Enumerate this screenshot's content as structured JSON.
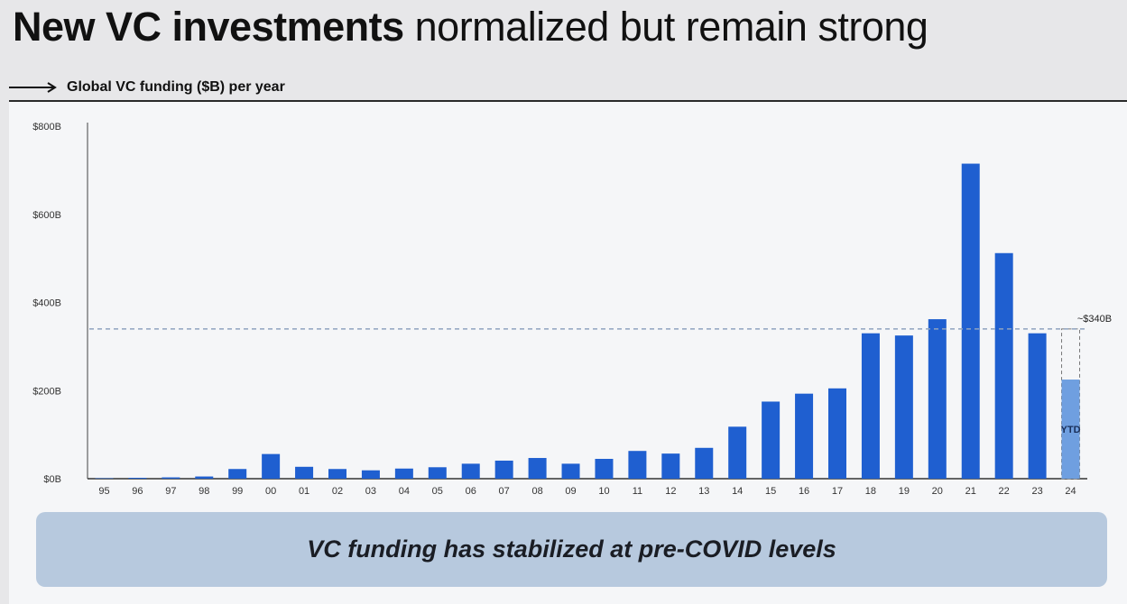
{
  "title": {
    "bold": "New VC investments",
    "rest": " normalized but remain strong"
  },
  "subtitle": "Global VC funding ($B) per year",
  "banner": "VC funding has stabilized at pre-COVID levels",
  "colors": {
    "bar": "#1f5fd0",
    "bar_ytd": "#6f9fe0",
    "reference_line": "#8fa3bf",
    "banner": "#b7c9de"
  },
  "chart_data": {
    "type": "bar",
    "ylabel": "Global VC funding ($B) per year",
    "ylim": [
      0,
      800
    ],
    "yticks": [
      "$0B",
      "$200B",
      "$400B",
      "$600B",
      "$800B"
    ],
    "ytick_values": [
      0,
      200,
      400,
      600,
      800
    ],
    "categories": [
      "95",
      "96",
      "97",
      "98",
      "99",
      "00",
      "01",
      "02",
      "03",
      "04",
      "05",
      "06",
      "07",
      "08",
      "09",
      "10",
      "11",
      "12",
      "13",
      "14",
      "15",
      "16",
      "17",
      "18",
      "19",
      "20",
      "21",
      "22",
      "23",
      "24"
    ],
    "values": [
      1,
      2,
      3,
      5,
      22,
      56,
      27,
      22,
      19,
      23,
      26,
      34,
      41,
      47,
      34,
      45,
      63,
      57,
      70,
      118,
      175,
      193,
      205,
      330,
      325,
      362,
      715,
      512,
      330,
      225
    ],
    "ytd_category": "24",
    "ytd_label": "YTD",
    "ytd_projection": 340,
    "reference_line": {
      "value": 340,
      "label": "~$340B"
    },
    "grid": false,
    "legend": "none"
  }
}
